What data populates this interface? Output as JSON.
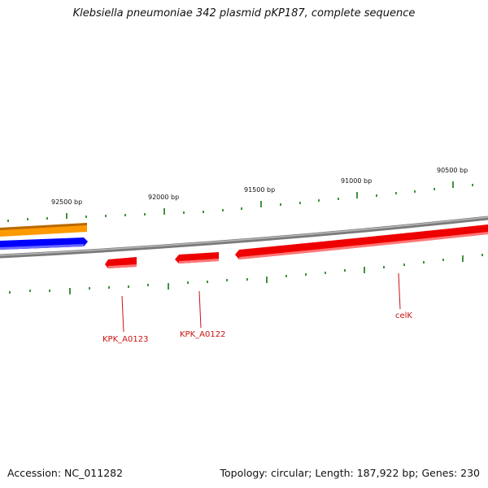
{
  "title": "Klebsiella pneumoniae 342 plasmid pKP187, complete sequence",
  "footer": {
    "accession": "Accession: NC_011282",
    "summary": "Topology: circular; Length: 187,922 bp; Genes: 230"
  },
  "ticks": {
    "labels": [
      "92500 bp",
      "92000 bp",
      "91500 bp",
      "91000 bp",
      "90500 bp"
    ]
  },
  "genes": {
    "labels": [
      "KPK_A0123",
      "KPK_A0122",
      "celK"
    ]
  },
  "colors": {
    "backbone": "#888888",
    "forward_gene": "#ff0000",
    "orange_feature": "#ff9900",
    "blue_feature": "#0000ff",
    "ticks": "#117711",
    "label": "#cc1111"
  }
}
